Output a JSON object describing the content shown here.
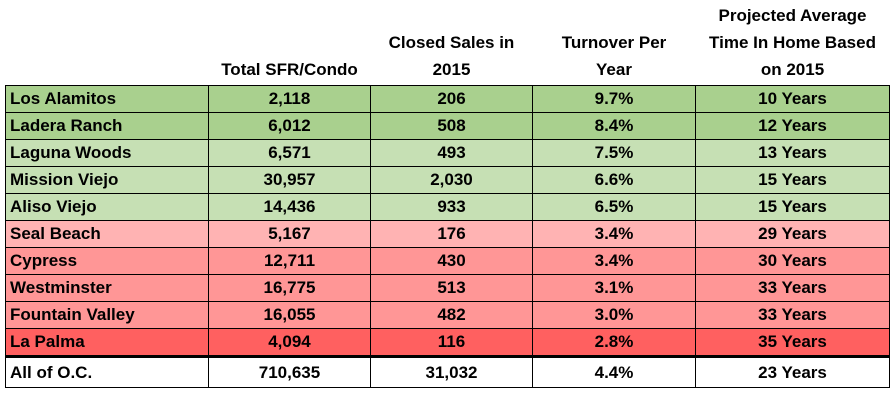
{
  "headers": [
    "",
    "Total SFR/Condo",
    "Closed Sales in\n2015",
    "Turnover Per\nYear",
    "Projected Average\nTime In Home Based\non 2015"
  ],
  "rows": [
    {
      "city": "Los Alamitos",
      "total": "2,118",
      "sales": "206",
      "turnover": "9.7%",
      "time": "10 Years",
      "color": "#a9d08e"
    },
    {
      "city": "Ladera Ranch",
      "total": "6,012",
      "sales": "508",
      "turnover": "8.4%",
      "time": "12 Years",
      "color": "#a9d08e"
    },
    {
      "city": "Laguna Woods",
      "total": "6,571",
      "sales": "493",
      "turnover": "7.5%",
      "time": "13 Years",
      "color": "#c6e0b4"
    },
    {
      "city": "Mission Viejo",
      "total": "30,957",
      "sales": "2,030",
      "turnover": "6.6%",
      "time": "15 Years",
      "color": "#c6e0b4"
    },
    {
      "city": "Aliso Viejo",
      "total": "14,436",
      "sales": "933",
      "turnover": "6.5%",
      "time": "15 Years",
      "color": "#c6e0b4"
    },
    {
      "city": "Seal Beach",
      "total": "5,167",
      "sales": "176",
      "turnover": "3.4%",
      "time": "29 Years",
      "color": "#ffb3b3"
    },
    {
      "city": "Cypress",
      "total": "12,711",
      "sales": "430",
      "turnover": "3.4%",
      "time": "30 Years",
      "color": "#ff9696"
    },
    {
      "city": "Westminster",
      "total": "16,775",
      "sales": "513",
      "turnover": "3.1%",
      "time": "33 Years",
      "color": "#ff9696"
    },
    {
      "city": "Fountain Valley",
      "total": "16,055",
      "sales": "482",
      "turnover": "3.0%",
      "time": "33 Years",
      "color": "#ff9696"
    },
    {
      "city": "La Palma",
      "total": "4,094",
      "sales": "116",
      "turnover": "2.8%",
      "time": "35 Years",
      "color": "#ff6060"
    }
  ],
  "total_row": {
    "city": "All of O.C.",
    "total": "710,635",
    "sales": "31,032",
    "turnover": "4.4%",
    "time": "23 Years"
  }
}
